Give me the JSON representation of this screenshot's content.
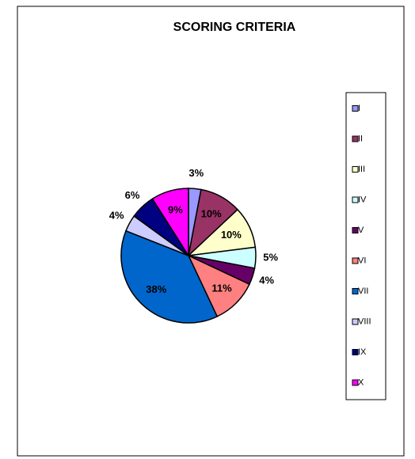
{
  "chart_data": {
    "type": "pie",
    "title": "SCORING CRITERIA",
    "categories": [
      "I",
      "II",
      "III",
      "IV",
      "V",
      "VI",
      "VII",
      "VIII",
      "IX",
      "X"
    ],
    "values": [
      3,
      10,
      10,
      5,
      4,
      11,
      38,
      4,
      6,
      9
    ],
    "value_labels": [
      "3%",
      "10%",
      "10%",
      "5%",
      "4%",
      "11%",
      "38%",
      "4%",
      "6%",
      "9%"
    ],
    "colors": [
      "#9999ff",
      "#993366",
      "#ffffcc",
      "#ccffff",
      "#660066",
      "#ff8080",
      "#0066cc",
      "#ccccff",
      "#000080",
      "#ff00ff"
    ],
    "legend": "right"
  }
}
